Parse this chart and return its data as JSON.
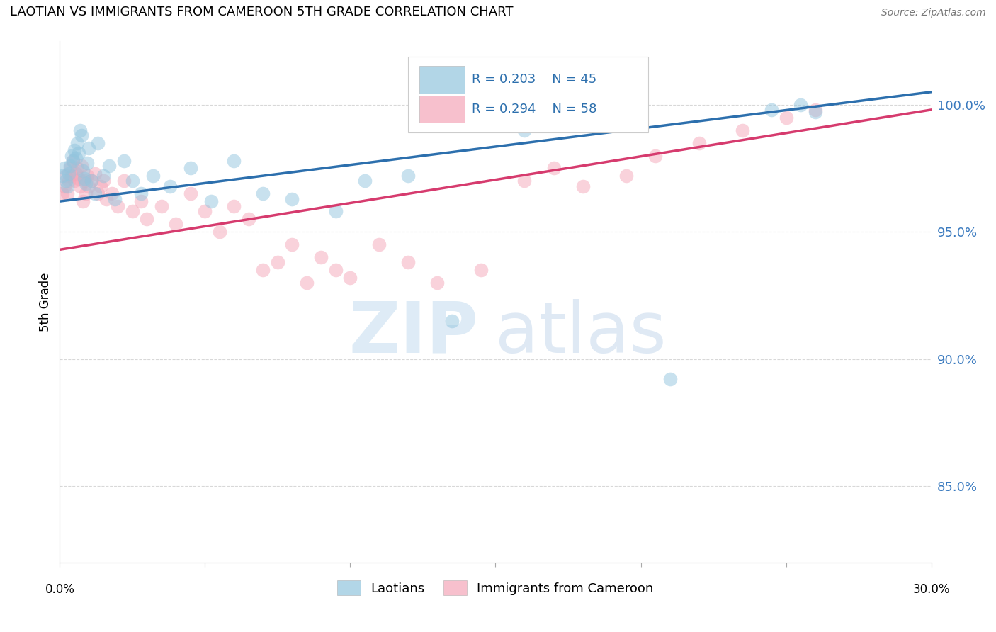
{
  "title": "LAOTIAN VS IMMIGRANTS FROM CAMEROON 5TH GRADE CORRELATION CHART",
  "source": "Source: ZipAtlas.com",
  "ylabel": "5th Grade",
  "xlim": [
    0.0,
    30.0
  ],
  "ylim": [
    82.0,
    102.5
  ],
  "yticks": [
    85.0,
    90.0,
    95.0,
    100.0
  ],
  "ytick_labels": [
    "85.0%",
    "90.0%",
    "95.0%",
    "100.0%"
  ],
  "legend_labels": [
    "Laotians",
    "Immigrants from Cameroon"
  ],
  "legend_r_blue": "R = 0.203",
  "legend_n_blue": "N = 45",
  "legend_r_pink": "R = 0.294",
  "legend_n_pink": "N = 58",
  "blue_color": "#92c5de",
  "pink_color": "#f4a6b8",
  "blue_line_color": "#2c6fad",
  "pink_line_color": "#d63b6e",
  "blue_scatter": {
    "x": [
      0.1,
      0.15,
      0.2,
      0.25,
      0.3,
      0.35,
      0.4,
      0.45,
      0.5,
      0.55,
      0.6,
      0.65,
      0.7,
      0.75,
      0.8,
      0.85,
      0.9,
      0.95,
      1.0,
      1.1,
      1.2,
      1.3,
      1.5,
      1.7,
      1.9,
      2.2,
      2.5,
      2.8,
      3.2,
      3.8,
      4.5,
      5.2,
      6.0,
      7.0,
      8.0,
      9.5,
      10.5,
      12.0,
      13.5,
      16.0,
      17.5,
      21.0,
      24.5,
      25.5,
      26.0
    ],
    "y": [
      97.2,
      97.5,
      97.0,
      96.8,
      97.3,
      97.6,
      98.0,
      97.8,
      98.2,
      97.9,
      98.5,
      98.1,
      99.0,
      98.8,
      97.4,
      97.1,
      96.9,
      97.7,
      98.3,
      97.0,
      96.5,
      98.5,
      97.2,
      97.6,
      96.3,
      97.8,
      97.0,
      96.5,
      97.2,
      96.8,
      97.5,
      96.2,
      97.8,
      96.5,
      96.3,
      95.8,
      97.0,
      97.2,
      91.5,
      99.0,
      99.5,
      89.2,
      99.8,
      100.0,
      99.7
    ]
  },
  "pink_scatter": {
    "x": [
      0.1,
      0.15,
      0.2,
      0.25,
      0.3,
      0.35,
      0.4,
      0.45,
      0.5,
      0.55,
      0.6,
      0.65,
      0.7,
      0.75,
      0.8,
      0.85,
      0.9,
      0.95,
      1.0,
      1.1,
      1.2,
      1.3,
      1.4,
      1.5,
      1.6,
      1.8,
      2.0,
      2.2,
      2.5,
      2.8,
      3.0,
      3.5,
      4.0,
      4.5,
      5.0,
      5.5,
      6.0,
      6.5,
      7.0,
      7.5,
      8.0,
      8.5,
      9.0,
      9.5,
      10.0,
      11.0,
      12.0,
      13.0,
      14.5,
      16.0,
      17.0,
      18.0,
      19.5,
      20.5,
      22.0,
      23.5,
      25.0,
      26.0
    ],
    "y": [
      96.5,
      96.8,
      97.2,
      96.5,
      97.0,
      97.5,
      97.2,
      97.8,
      97.0,
      97.3,
      97.5,
      97.1,
      96.8,
      97.6,
      96.2,
      97.0,
      96.5,
      97.2,
      96.8,
      97.0,
      97.3,
      96.5,
      96.8,
      97.0,
      96.3,
      96.5,
      96.0,
      97.0,
      95.8,
      96.2,
      95.5,
      96.0,
      95.3,
      96.5,
      95.8,
      95.0,
      96.0,
      95.5,
      93.5,
      93.8,
      94.5,
      93.0,
      94.0,
      93.5,
      93.2,
      94.5,
      93.8,
      93.0,
      93.5,
      97.0,
      97.5,
      96.8,
      97.2,
      98.0,
      98.5,
      99.0,
      99.5,
      99.8
    ]
  },
  "watermark_zip": "ZIP",
  "watermark_atlas": "atlas",
  "background_color": "#ffffff",
  "grid_color": "#c8c8c8"
}
